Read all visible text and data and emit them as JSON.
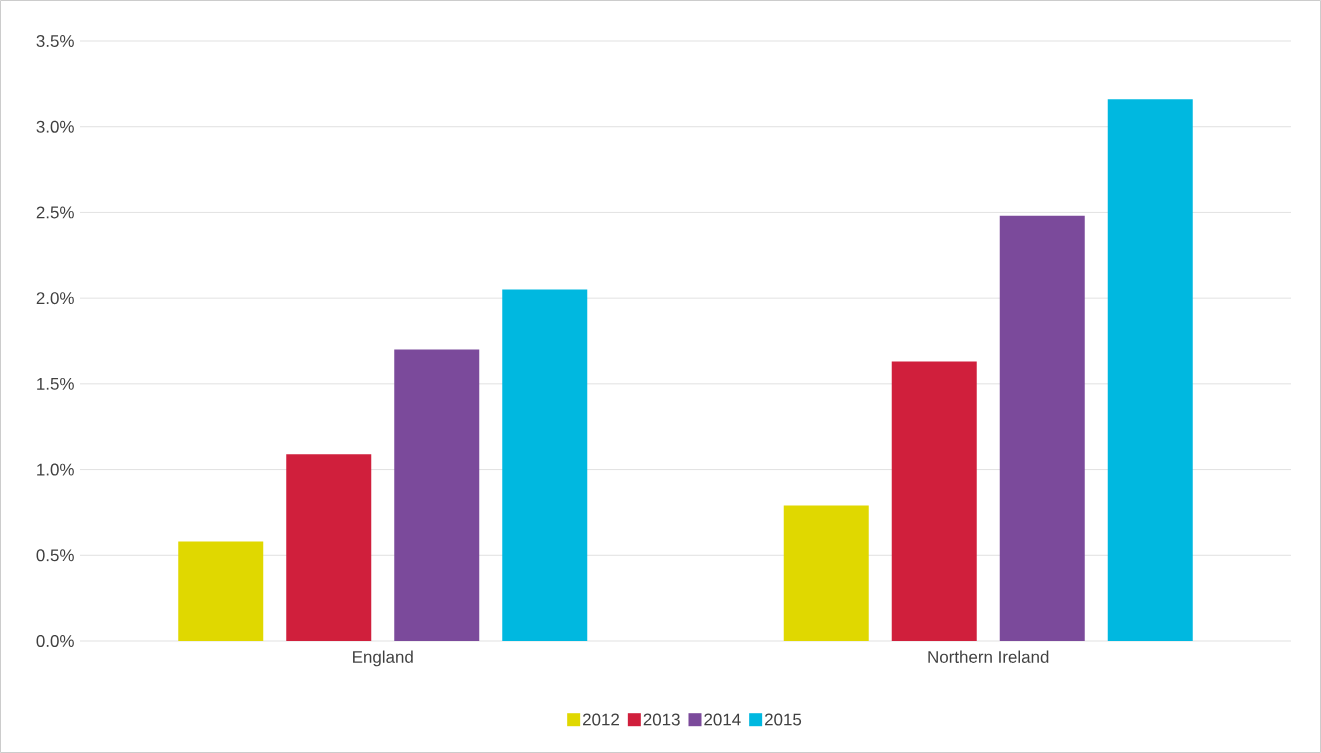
{
  "chart_data": {
    "type": "bar",
    "categories": [
      "England",
      "Northern Ireland"
    ],
    "series": [
      {
        "name": "2012",
        "color": "#e0d800",
        "values": [
          0.58,
          0.79
        ]
      },
      {
        "name": "2013",
        "color": "#d01f3c",
        "values": [
          1.09,
          1.63
        ]
      },
      {
        "name": "2014",
        "color": "#7b4a9b",
        "values": [
          1.7,
          2.48
        ]
      },
      {
        "name": "2015",
        "color": "#00b8e0",
        "values": [
          2.05,
          3.16
        ]
      }
    ],
    "ylim": [
      0,
      3.5
    ],
    "yticks": [
      {
        "value": 0,
        "label": "0.0%"
      },
      {
        "value": 0.5,
        "label": "0.5%"
      },
      {
        "value": 1,
        "label": "1.0%"
      },
      {
        "value": 1.5,
        "label": "1.5%"
      },
      {
        "value": 2,
        "label": "2.0%"
      },
      {
        "value": 2.5,
        "label": "2.5%"
      },
      {
        "value": 3,
        "label": "3.0%"
      },
      {
        "value": 3.5,
        "label": "3.5%"
      }
    ],
    "grid": "y",
    "legend": "bottom"
  }
}
